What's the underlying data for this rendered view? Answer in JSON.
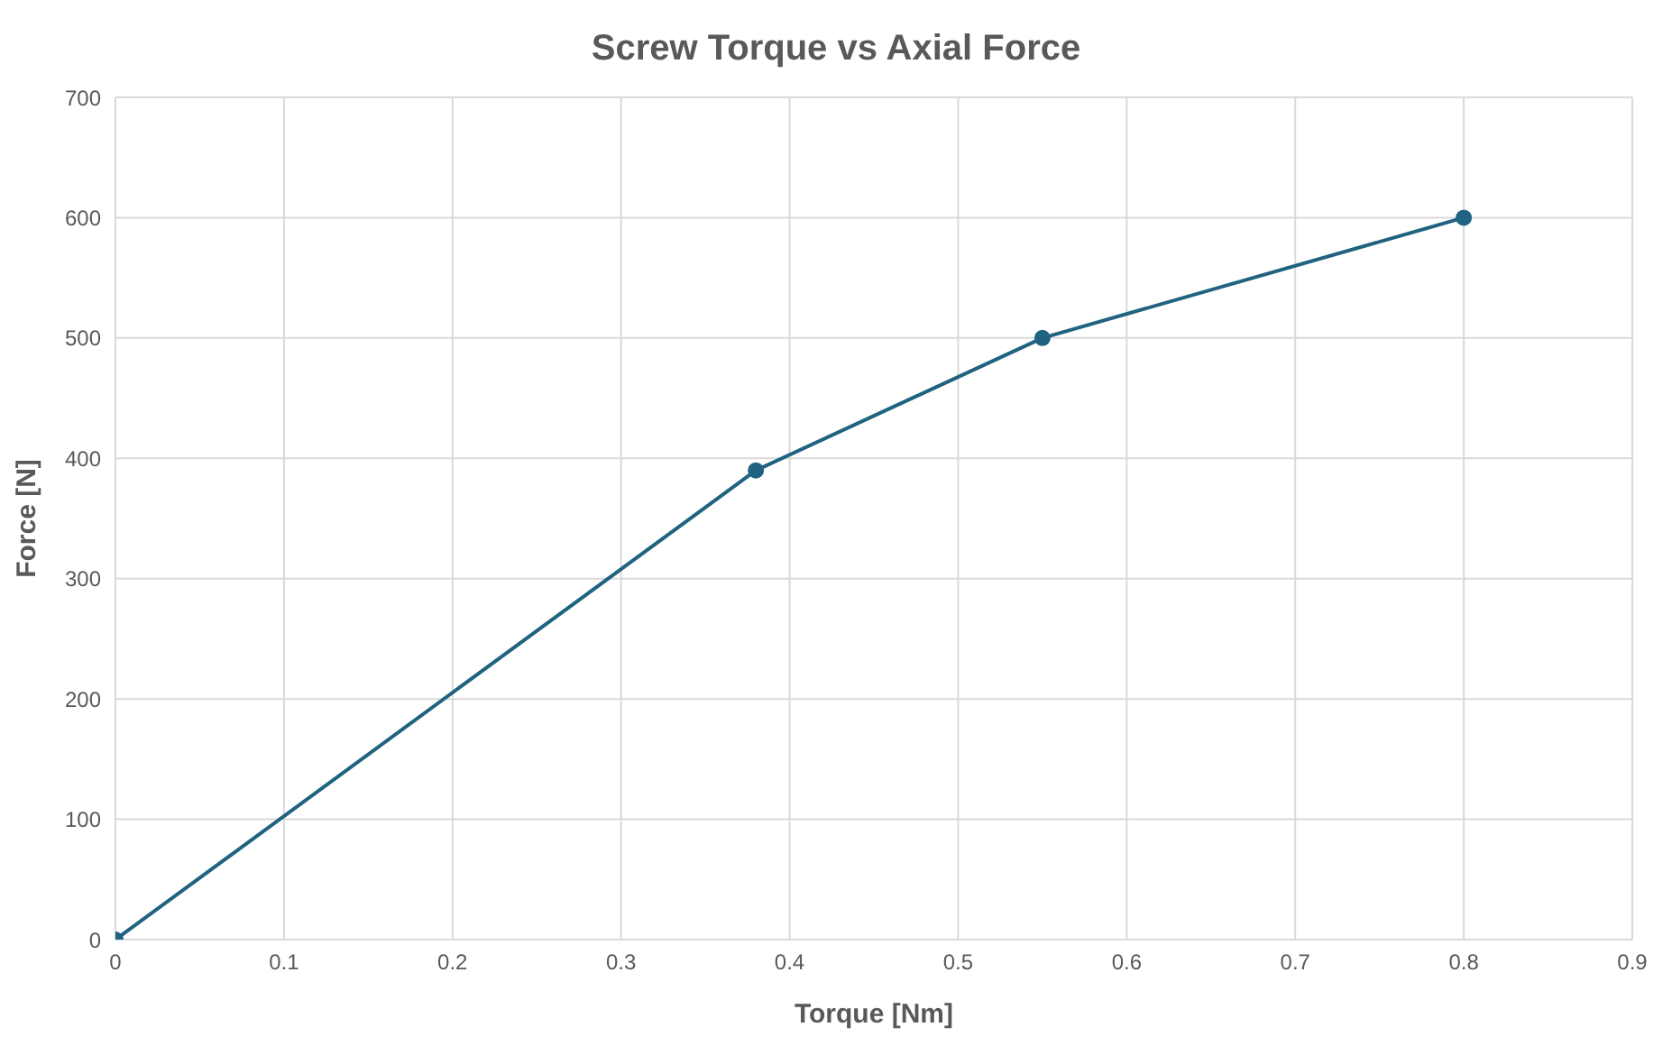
{
  "chart_data": {
    "type": "line",
    "title": "Screw Torque vs Axial Force",
    "xlabel": "Torque [Nm]",
    "ylabel": "Force [N]",
    "x": [
      0,
      0.38,
      0.55,
      0.8
    ],
    "series": [
      {
        "color": "#1f6380",
        "values": [
          0,
          390,
          500,
          600
        ]
      }
    ],
    "xlim": [
      0,
      0.9
    ],
    "xticks": [
      0,
      0.1,
      0.2,
      0.3,
      0.4,
      0.5,
      0.6,
      0.7,
      0.8,
      0.9
    ],
    "ylim": [
      0,
      700
    ],
    "yticks": [
      0,
      100,
      200,
      300,
      400,
      500,
      600,
      700
    ],
    "grid": true,
    "legend": false,
    "marker": "circle",
    "line_style": "solid"
  }
}
